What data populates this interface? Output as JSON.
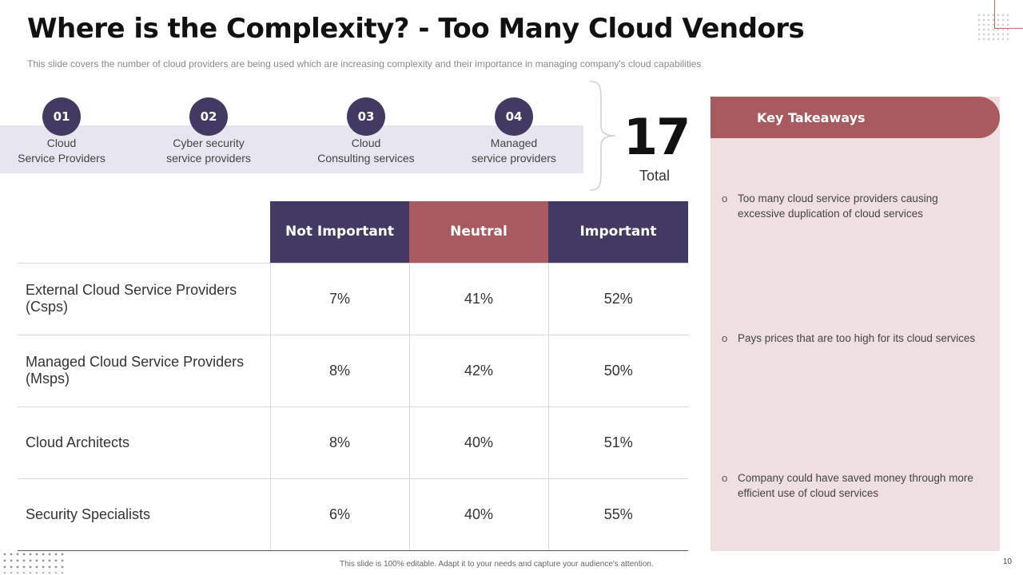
{
  "header": {
    "title": "Where is the Complexity? - Too Many Cloud Vendors",
    "subtitle": "This slide covers the number of cloud providers  are being used which are increasing complexity and their importance in managing company's cloud capabilities"
  },
  "steps": [
    {
      "number": "01",
      "line1": "Cloud",
      "line2": "Service Providers"
    },
    {
      "number": "02",
      "line1": "Cyber security",
      "line2": "service providers"
    },
    {
      "number": "03",
      "line1": "Cloud",
      "line2": "Consulting services"
    },
    {
      "number": "04",
      "line1": "Managed",
      "line2": "service providers"
    }
  ],
  "total": {
    "value": "17",
    "label": "Total"
  },
  "table": {
    "headers": [
      "Not Important",
      "Neutral",
      "Important"
    ],
    "rows": [
      {
        "label": "External Cloud Service Providers (Csps)",
        "values": [
          "7%",
          "41%",
          "52%"
        ]
      },
      {
        "label": "Managed Cloud Service Providers (Msps)",
        "values": [
          "8%",
          "42%",
          "50%"
        ]
      },
      {
        "label": "Cloud Architects",
        "values": [
          "8%",
          "40%",
          "51%"
        ]
      },
      {
        "label": "Security Specialists",
        "values": [
          "6%",
          "40%",
          "55%"
        ]
      }
    ]
  },
  "takeaways": {
    "title": "Key Takeaways",
    "bullet_symbol": "o",
    "items": [
      "Too many cloud service providers causing excessive duplication of cloud services",
      "Pays prices that are too high for its cloud services",
      "Company could have saved money through more efficient use of cloud services"
    ]
  },
  "footer": {
    "note": "This slide is 100% editable. Adapt it to your needs and capture your audience's attention.",
    "page": "10"
  },
  "colors": {
    "purple": "#433a63",
    "rose": "#a85a5e",
    "panel": "#efdfe1",
    "band": "#e6e5f0"
  }
}
